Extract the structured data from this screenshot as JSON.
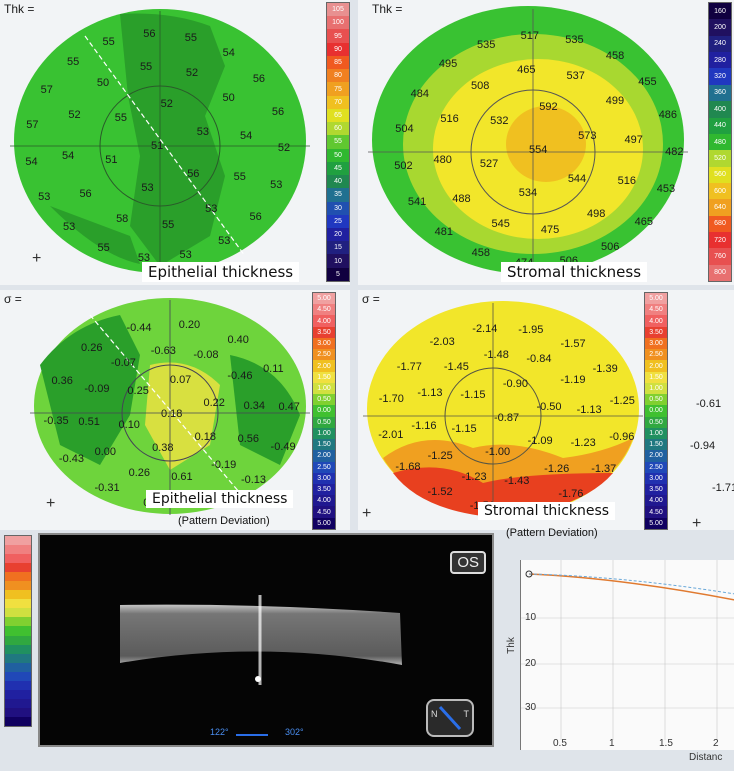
{
  "top_left": {
    "corner_label": "Thk =",
    "title": "Epithelial thickness",
    "values": [
      "51",
      "52",
      "53",
      "56",
      "53",
      "51",
      "55",
      "52",
      "50",
      "54",
      "55",
      "53",
      "55",
      "58",
      "56",
      "54",
      "52",
      "50",
      "55",
      "54",
      "56",
      "56",
      "52",
      "53",
      "56",
      "53",
      "53",
      "53",
      "55",
      "53",
      "53",
      "54",
      "57",
      "57",
      "55",
      "55",
      "56",
      "55"
    ],
    "scale": [
      "105",
      "100",
      "95",
      "90",
      "85",
      "80",
      "75",
      "70",
      "65",
      "60",
      "55",
      "50",
      "45",
      "40",
      "35",
      "30",
      "25",
      "20",
      "15",
      "10",
      "5"
    ]
  },
  "top_right": {
    "corner_label": "Thk =",
    "title": "Stromal thickness",
    "values": [
      "554",
      "592",
      "573",
      "544",
      "534",
      "527",
      "532",
      "537",
      "499",
      "497",
      "516",
      "498",
      "475",
      "545",
      "488",
      "480",
      "516",
      "508",
      "465",
      "458",
      "455",
      "486",
      "482",
      "453",
      "465",
      "506",
      "506",
      "474",
      "458",
      "481",
      "541",
      "502",
      "504",
      "484",
      "495",
      "535",
      "517",
      "535"
    ],
    "scale": [
      "160",
      "200",
      "240",
      "280",
      "320",
      "360",
      "400",
      "440",
      "480",
      "520",
      "560",
      "600",
      "640",
      "680",
      "720",
      "760",
      "800"
    ]
  },
  "mid_left": {
    "corner_label": "σ =",
    "title": "Epithelial thickness",
    "subtitle": "(Pattern Deviation)",
    "values": [
      "0.18",
      "0.07",
      "0.22",
      "0.18",
      "0.38",
      "0.10",
      "0.25",
      "-0.08",
      "-0.46",
      "0.34",
      "0.56",
      "-0.19",
      "0.61",
      "0.26",
      "0.00",
      "0.51",
      "-0.09",
      "-0.07",
      "-0.63",
      "0.40",
      "0.11",
      "0.47",
      "-0.49",
      "-0.13",
      "0.40",
      "0.22",
      "-0.31",
      "-0.43",
      "-0.35",
      "0.36",
      "0.26",
      "-0.44",
      "0.20"
    ],
    "scale": [
      "5.00",
      "4.50",
      "4.00",
      "3.50",
      "3.00",
      "2.50",
      "2.00",
      "1.50",
      "1.00",
      "0.50",
      "0.00",
      "0.50",
      "1.00",
      "1.50",
      "2.00",
      "2.50",
      "3.00",
      "3.50",
      "4.00",
      "4.50",
      "5.00"
    ]
  },
  "mid_right": {
    "corner_label": "σ =",
    "title": "Stromal thickness",
    "subtitle": "(Pattern Deviation)",
    "values": [
      "-0.87",
      "-0.90",
      "-0.50",
      "-1.09",
      "-1.00",
      "-1.15",
      "-1.15",
      "-0.84",
      "-1.19",
      "-1.13",
      "-1.23",
      "-1.26",
      "-1.43",
      "-1.23",
      "-1.25",
      "-1.16",
      "-1.13",
      "-1.45",
      "-1.48",
      "-1.57",
      "-1.39",
      "-1.25",
      "-0.96",
      "-1.37",
      "-1.76",
      "-1.53",
      "-1.51",
      "-1.52",
      "-1.68",
      "-2.01",
      "-1.70",
      "-1.77",
      "-2.03",
      "-2.14",
      "-1.95"
    ],
    "scale": [
      "5.00",
      "4.50",
      "4.00",
      "3.50",
      "3.00",
      "2.50",
      "2.00",
      "1.50",
      "1.00",
      "0.50",
      "0.00",
      "0.50",
      "1.00",
      "1.50",
      "2.00",
      "2.50",
      "3.00",
      "3.50",
      "4.00",
      "4.50",
      "5.00"
    ]
  },
  "edge_labels": {
    "right_top": "-0.61",
    "right_mid": "-0.94",
    "right_low": "-1.71"
  },
  "oct": {
    "eye": "OS",
    "angle_left": "122°",
    "angle_right": "302°",
    "nav_left": "N",
    "nav_right": "T"
  },
  "graph": {
    "ylabel": "Thk",
    "yticks": [
      "10",
      "20",
      "30"
    ],
    "xticks": [
      "0.5",
      "1",
      "1.5",
      "2"
    ],
    "xlabel": "Distanc"
  },
  "colors": {
    "green": "#39c232",
    "dark_green": "#2a9f2a",
    "light_green": "#6ed43c",
    "yellow": "#f2e62a",
    "orange": "#f0a020",
    "red": "#e8401f"
  }
}
